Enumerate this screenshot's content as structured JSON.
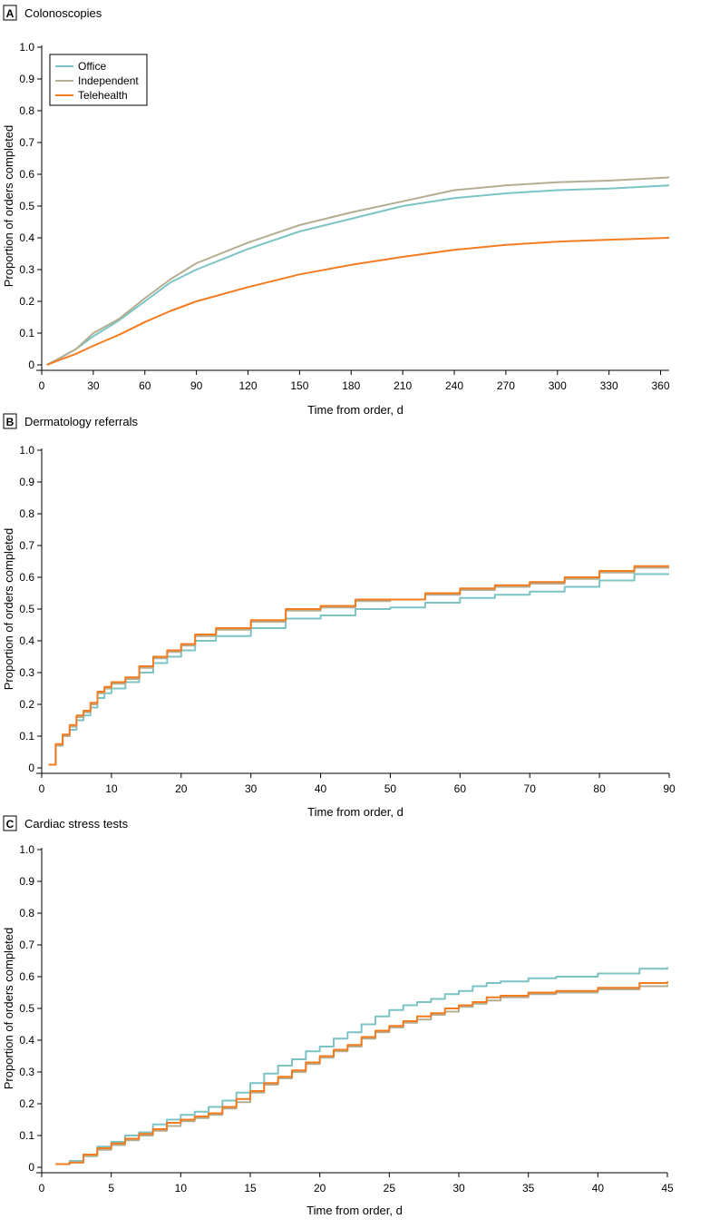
{
  "colors": {
    "office": "#7cc4c4",
    "independent": "#b3ad92",
    "telehealth": "#f47c20",
    "axis": "#000000"
  },
  "legend": [
    {
      "name": "Office",
      "color": "#7cc4c4"
    },
    {
      "name": "Independent",
      "color": "#b3ad92"
    },
    {
      "name": "Telehealth",
      "color": "#f47c20"
    }
  ],
  "chart_data": [
    {
      "panel": "A",
      "title": "Colonoscopies",
      "type": "line",
      "step": false,
      "xlabel": "Time from order, d",
      "ylabel": "Proportion of orders completed",
      "xlim": [
        0,
        365
      ],
      "ylim": [
        0,
        1.0
      ],
      "xticks": [
        0,
        30,
        60,
        90,
        120,
        150,
        180,
        210,
        240,
        270,
        300,
        330,
        360
      ],
      "yticks": [
        0,
        0.1,
        0.2,
        0.3,
        0.4,
        0.5,
        0.6,
        0.7,
        0.8,
        0.9,
        1.0
      ],
      "ytick_labels": [
        "0",
        "0.1",
        "0.2",
        "0.3",
        "0.4",
        "0.5",
        "0.6",
        "0.7",
        "0.8",
        "0.9",
        "1.0"
      ],
      "legend": true,
      "series": [
        {
          "name": "Office",
          "x": [
            3,
            10,
            20,
            30,
            45,
            60,
            75,
            90,
            120,
            150,
            180,
            210,
            240,
            270,
            300,
            330,
            365
          ],
          "y": [
            0,
            0.02,
            0.05,
            0.09,
            0.14,
            0.2,
            0.26,
            0.3,
            0.365,
            0.42,
            0.46,
            0.5,
            0.525,
            0.54,
            0.55,
            0.555,
            0.565
          ]
        },
        {
          "name": "Independent",
          "x": [
            3,
            10,
            20,
            30,
            45,
            60,
            75,
            90,
            120,
            150,
            180,
            210,
            240,
            270,
            300,
            330,
            365
          ],
          "y": [
            0,
            0.02,
            0.05,
            0.1,
            0.145,
            0.21,
            0.27,
            0.32,
            0.385,
            0.44,
            0.48,
            0.515,
            0.55,
            0.565,
            0.575,
            0.58,
            0.59
          ]
        },
        {
          "name": "Telehealth",
          "x": [
            3,
            10,
            20,
            30,
            45,
            60,
            75,
            90,
            120,
            150,
            180,
            210,
            240,
            270,
            300,
            330,
            365
          ],
          "y": [
            0,
            0.015,
            0.035,
            0.06,
            0.095,
            0.135,
            0.17,
            0.2,
            0.245,
            0.285,
            0.315,
            0.34,
            0.362,
            0.378,
            0.388,
            0.394,
            0.4
          ]
        }
      ]
    },
    {
      "panel": "B",
      "title": "Dermatology referrals",
      "type": "line",
      "step": true,
      "xlabel": "Time from order, d",
      "ylabel": "Proportion of orders completed",
      "xlim": [
        0,
        90
      ],
      "ylim": [
        0,
        1.0
      ],
      "xticks": [
        0,
        10,
        20,
        30,
        40,
        50,
        60,
        70,
        80,
        90
      ],
      "yticks": [
        0,
        0.1,
        0.2,
        0.3,
        0.4,
        0.5,
        0.6,
        0.7,
        0.8,
        0.9,
        1.0
      ],
      "ytick_labels": [
        "0",
        "0.1",
        "0.2",
        "0.3",
        "0.4",
        "0.5",
        "0.6",
        "0.7",
        "0.8",
        "0.9",
        "1.0"
      ],
      "legend": false,
      "series": [
        {
          "name": "Office",
          "x": [
            1,
            2,
            3,
            4,
            5,
            6,
            7,
            8,
            9,
            10,
            12,
            14,
            16,
            18,
            20,
            22,
            25,
            30,
            35,
            40,
            45,
            50,
            55,
            60,
            65,
            70,
            75,
            80,
            85,
            90
          ],
          "y": [
            0.01,
            0.07,
            0.1,
            0.12,
            0.15,
            0.165,
            0.19,
            0.22,
            0.235,
            0.25,
            0.27,
            0.3,
            0.33,
            0.35,
            0.37,
            0.4,
            0.415,
            0.44,
            0.47,
            0.48,
            0.5,
            0.505,
            0.52,
            0.535,
            0.545,
            0.555,
            0.57,
            0.59,
            0.61,
            0.61
          ]
        },
        {
          "name": "Independent",
          "x": [
            1,
            2,
            3,
            4,
            5,
            6,
            7,
            8,
            9,
            10,
            12,
            14,
            16,
            18,
            20,
            22,
            25,
            30,
            35,
            40,
            45,
            50,
            55,
            60,
            65,
            70,
            75,
            80,
            85,
            90
          ],
          "y": [
            0.01,
            0.07,
            0.1,
            0.13,
            0.16,
            0.175,
            0.2,
            0.235,
            0.25,
            0.265,
            0.28,
            0.315,
            0.345,
            0.365,
            0.385,
            0.415,
            0.435,
            0.46,
            0.495,
            0.505,
            0.525,
            0.53,
            0.545,
            0.56,
            0.57,
            0.58,
            0.595,
            0.615,
            0.63,
            0.63
          ]
        },
        {
          "name": "Telehealth",
          "x": [
            1,
            2,
            3,
            4,
            5,
            6,
            7,
            8,
            9,
            10,
            12,
            14,
            16,
            18,
            20,
            22,
            25,
            30,
            35,
            40,
            45,
            50,
            55,
            60,
            65,
            70,
            75,
            80,
            85,
            90
          ],
          "y": [
            0.01,
            0.075,
            0.105,
            0.135,
            0.165,
            0.18,
            0.205,
            0.24,
            0.255,
            0.27,
            0.285,
            0.32,
            0.35,
            0.37,
            0.39,
            0.42,
            0.44,
            0.465,
            0.5,
            0.51,
            0.53,
            0.53,
            0.55,
            0.565,
            0.575,
            0.585,
            0.6,
            0.62,
            0.635,
            0.635
          ]
        }
      ]
    },
    {
      "panel": "C",
      "title": "Cardiac stress tests",
      "type": "line",
      "step": true,
      "xlabel": "Time from order, d",
      "ylabel": "Proportion of orders completed",
      "xlim": [
        0,
        45
      ],
      "ylim": [
        0,
        1.0
      ],
      "xticks": [
        0,
        5,
        10,
        15,
        20,
        25,
        30,
        35,
        40,
        45
      ],
      "yticks": [
        0,
        0.1,
        0.2,
        0.3,
        0.4,
        0.5,
        0.6,
        0.7,
        0.8,
        0.9,
        1.0
      ],
      "ytick_labels": [
        "0",
        "0.1",
        "0.2",
        "0.3",
        "0.4",
        "0.5",
        "0.6",
        "0.7",
        "0.8",
        "0.9",
        "1.0"
      ],
      "legend": false,
      "series": [
        {
          "name": "Office",
          "x": [
            1,
            2,
            3,
            4,
            5,
            6,
            7,
            8,
            9,
            10,
            11,
            12,
            13,
            14,
            15,
            16,
            17,
            18,
            19,
            20,
            21,
            22,
            23,
            24,
            25,
            26,
            27,
            28,
            29,
            30,
            31,
            32,
            33,
            35,
            37,
            40,
            43,
            45
          ],
          "y": [
            0.01,
            0.02,
            0.04,
            0.065,
            0.08,
            0.1,
            0.11,
            0.135,
            0.15,
            0.165,
            0.175,
            0.19,
            0.21,
            0.235,
            0.265,
            0.295,
            0.32,
            0.34,
            0.365,
            0.38,
            0.405,
            0.425,
            0.45,
            0.475,
            0.495,
            0.51,
            0.52,
            0.53,
            0.545,
            0.555,
            0.57,
            0.58,
            0.585,
            0.595,
            0.6,
            0.61,
            0.625,
            0.63
          ]
        },
        {
          "name": "Independent",
          "x": [
            1,
            2,
            3,
            4,
            5,
            6,
            7,
            8,
            9,
            10,
            11,
            12,
            13,
            14,
            15,
            16,
            17,
            18,
            19,
            20,
            21,
            22,
            23,
            24,
            25,
            26,
            27,
            28,
            29,
            30,
            31,
            32,
            33,
            35,
            37,
            40,
            43,
            45
          ],
          "y": [
            0.01,
            0.015,
            0.035,
            0.055,
            0.07,
            0.085,
            0.1,
            0.115,
            0.13,
            0.145,
            0.155,
            0.165,
            0.185,
            0.205,
            0.235,
            0.26,
            0.28,
            0.3,
            0.325,
            0.345,
            0.365,
            0.38,
            0.405,
            0.425,
            0.44,
            0.455,
            0.465,
            0.48,
            0.49,
            0.505,
            0.515,
            0.525,
            0.535,
            0.545,
            0.55,
            0.56,
            0.57,
            0.575
          ]
        },
        {
          "name": "Telehealth",
          "x": [
            1,
            2,
            3,
            4,
            5,
            6,
            7,
            8,
            9,
            10,
            11,
            12,
            13,
            14,
            15,
            16,
            17,
            18,
            19,
            20,
            21,
            22,
            23,
            24,
            25,
            26,
            27,
            28,
            29,
            30,
            31,
            32,
            33,
            35,
            37,
            40,
            43,
            45
          ],
          "y": [
            0.01,
            0.015,
            0.04,
            0.06,
            0.075,
            0.09,
            0.105,
            0.12,
            0.14,
            0.15,
            0.16,
            0.17,
            0.19,
            0.215,
            0.24,
            0.265,
            0.285,
            0.305,
            0.33,
            0.35,
            0.37,
            0.385,
            0.41,
            0.43,
            0.445,
            0.46,
            0.475,
            0.485,
            0.5,
            0.51,
            0.52,
            0.535,
            0.54,
            0.55,
            0.555,
            0.565,
            0.58,
            0.585
          ]
        }
      ]
    }
  ]
}
